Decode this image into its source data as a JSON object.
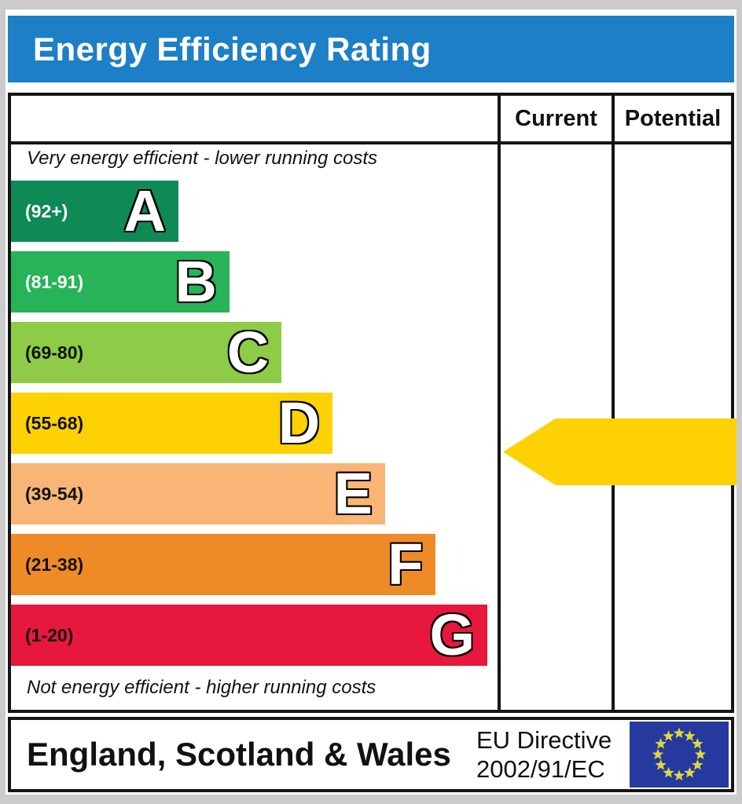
{
  "banner": {
    "title": "Energy Efficiency Rating",
    "color": "#1d7fc5"
  },
  "columns": {
    "current": "Current",
    "potential": "Potential"
  },
  "captions": {
    "top": "Very energy efficient - lower running costs",
    "bottom": "Not energy efficient - higher running costs"
  },
  "bands": [
    {
      "letter": "A",
      "range": "(92+)",
      "color": "#0d8a56",
      "label_color": "#ffffff",
      "width_pct": 34.4
    },
    {
      "letter": "B",
      "range": "(81-91)",
      "color": "#27b357",
      "label_color": "#ffffff",
      "width_pct": 44.9
    },
    {
      "letter": "C",
      "range": "(69-80)",
      "color": "#8ecb46",
      "label_color": "#111111",
      "width_pct": 55.6
    },
    {
      "letter": "D",
      "range": "(55-68)",
      "color": "#fdd103",
      "label_color": "#111111",
      "width_pct": 66.1
    },
    {
      "letter": "E",
      "range": "(39-54)",
      "color": "#f9b576",
      "label_color": "#111111",
      "width_pct": 76.9
    },
    {
      "letter": "F",
      "range": "(21-38)",
      "color": "#ef8b27",
      "label_color": "#111111",
      "width_pct": 87.3
    },
    {
      "letter": "G",
      "range": "(1-20)",
      "color": "#e8173d",
      "label_color": "#111111",
      "width_pct": 97.9
    }
  ],
  "ratings": {
    "current": {
      "value": "55",
      "color": "#fdd103"
    },
    "potential": {
      "value": "55",
      "color": "#fdd103"
    }
  },
  "footer": {
    "region": "England, Scotland & Wales",
    "directive_line1": "EU Directive",
    "directive_line2": "2002/91/EC",
    "eu_flag": {
      "background": "#25399f",
      "star_color": "#dbd83a",
      "star_count": 12
    }
  },
  "chart_data": {
    "type": "bar",
    "title": "Energy Efficiency Rating",
    "categories": [
      "A",
      "B",
      "C",
      "D",
      "E",
      "F",
      "G"
    ],
    "band_ranges": [
      "92+",
      "81-91",
      "69-80",
      "55-68",
      "39-54",
      "21-38",
      "1-20"
    ],
    "band_colors": [
      "#0d8a56",
      "#27b357",
      "#8ecb46",
      "#fdd103",
      "#f9b576",
      "#ef8b27",
      "#e8173d"
    ],
    "bar_length_pct": [
      34.4,
      44.9,
      55.6,
      66.1,
      76.9,
      87.3,
      97.9
    ],
    "series": [
      {
        "name": "Current",
        "values": [
          55
        ]
      },
      {
        "name": "Potential",
        "values": [
          55
        ]
      }
    ],
    "value_scale": [
      1,
      100
    ],
    "annotations": [
      "Very energy efficient - lower running costs",
      "Not energy efficient - higher running costs"
    ],
    "footnote": "England, Scotland & Wales — EU Directive 2002/91/EC"
  }
}
